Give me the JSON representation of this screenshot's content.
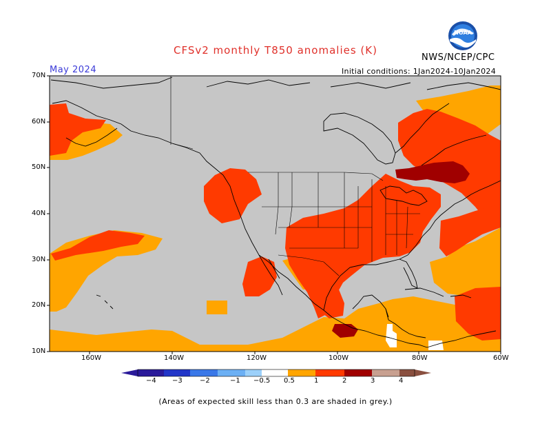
{
  "header": {
    "title": "CFSv2 monthly T850 anomalies (K)",
    "agency": "NWS/NCEP/CPC",
    "month": "May 2024",
    "initial_conditions": "Initial conditions: 1Jan2024-10Jan2024",
    "logo_text": "NOAA"
  },
  "colors": {
    "title": "#e0302a",
    "month": "#3a3ad8",
    "grey": "#c6c6c6",
    "anom_0_5_1": "#ffa500",
    "anom_1_2": "#ff3a00",
    "anom_2_3": "#a00000",
    "anom_3_4": "#c8a090",
    "neg_4": "#2a1a9a",
    "neg_3": "#2236c8",
    "neg_2": "#3a78e8",
    "neg_1": "#6cb0f4",
    "neg_0_5": "#9cd0fa"
  },
  "map": {
    "lat_labels": [
      "70N",
      "60N",
      "50N",
      "40N",
      "30N",
      "20N",
      "10N"
    ],
    "lon_labels": [
      "160W",
      "140W",
      "120W",
      "100W",
      "80W",
      "60W"
    ]
  },
  "colorbar": {
    "labels": [
      "−4",
      "−3",
      "−2",
      "−1",
      "−0.5",
      "0.5",
      "1",
      "2",
      "3",
      "4"
    ]
  },
  "footnote": "(Areas of expected skill less than 0.3 are shaded in grey.)"
}
